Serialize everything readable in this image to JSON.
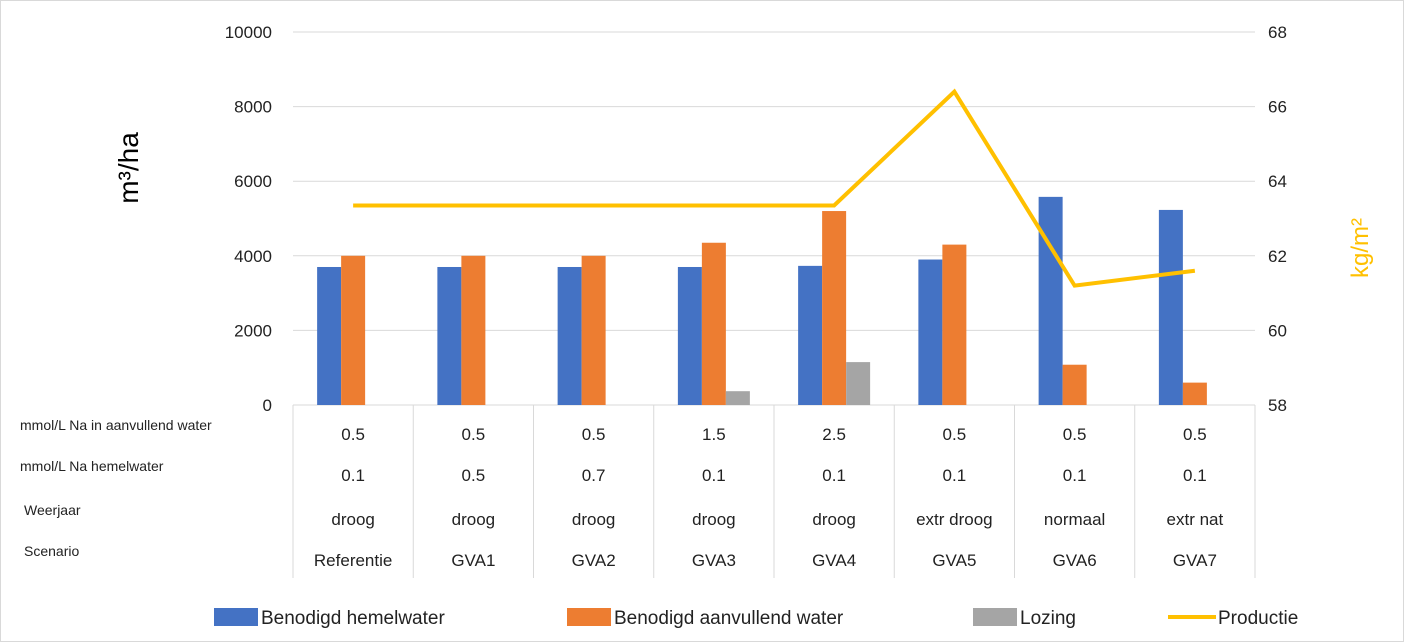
{
  "chart_data": {
    "type": "bar",
    "categories": [
      "Referentie",
      "GVA1",
      "GVA2",
      "GVA3",
      "GVA4",
      "GVA5",
      "GVA6",
      "GVA7"
    ],
    "series": [
      {
        "name": "Benodigd hemelwater",
        "type": "bar",
        "axis": "left",
        "color": "#4472C4",
        "values": [
          3700,
          3700,
          3700,
          3700,
          3730,
          3900,
          5580,
          5230
        ]
      },
      {
        "name": "Benodigd aanvullend water",
        "type": "bar",
        "axis": "left",
        "color": "#ED7D31",
        "values": [
          4000,
          4000,
          4000,
          4350,
          5200,
          4300,
          1080,
          600
        ]
      },
      {
        "name": "Lozing",
        "type": "bar",
        "axis": "left",
        "color": "#A5A5A5",
        "values": [
          0,
          0,
          0,
          370,
          1150,
          0,
          0,
          0
        ]
      },
      {
        "name": "Productie",
        "type": "line",
        "axis": "right",
        "color": "#FFC000",
        "values": [
          63.35,
          63.35,
          63.35,
          63.35,
          63.35,
          66.4,
          61.2,
          61.6
        ]
      }
    ],
    "ylabel_left": "m³/ha",
    "ylabel_right": "kg/m²",
    "ylim_left": [
      0,
      10000
    ],
    "yticks_left": [
      "0",
      "2000",
      "4000",
      "6000",
      "8000",
      "10000"
    ],
    "ylim_right": [
      58,
      68
    ],
    "yticks_right": [
      "58",
      "60",
      "62",
      "64",
      "66",
      "68"
    ],
    "grid": true,
    "legend_position": "bottom",
    "table": {
      "rows": [
        {
          "label": "mmol/L Na in aanvullend water",
          "values": [
            "0.5",
            "0.5",
            "0.5",
            "1.5",
            "2.5",
            "0.5",
            "0.5",
            "0.5"
          ]
        },
        {
          "label": "mmol/L Na hemelwater",
          "values": [
            "0.1",
            "0.5",
            "0.7",
            "0.1",
            "0.1",
            "0.1",
            "0.1",
            "0.1"
          ]
        },
        {
          "label": "Weerjaar",
          "values": [
            "droog",
            "droog",
            "droog",
            "droog",
            "droog",
            "extr droog",
            "normaal",
            "extr nat"
          ]
        },
        {
          "label": "Scenario",
          "values": [
            "Referentie",
            "GVA1",
            "GVA2",
            "GVA3",
            "GVA4",
            "GVA5",
            "GVA6",
            "GVA7"
          ]
        }
      ]
    }
  }
}
